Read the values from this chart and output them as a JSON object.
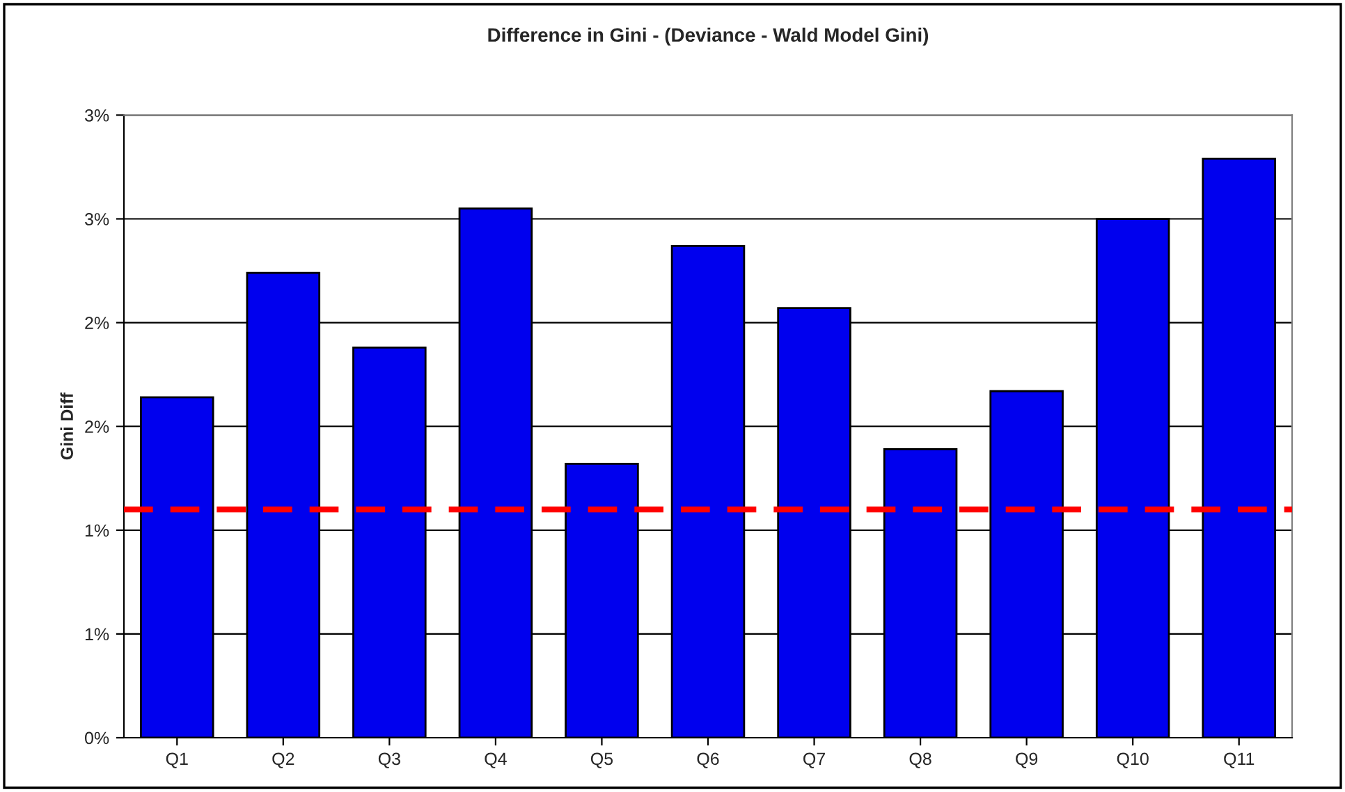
{
  "chart_data": {
    "type": "bar",
    "title": "Difference in Gini - (Deviance - Wald Model Gini)",
    "ylabel": "Gini Diff",
    "categories": [
      "Q1",
      "Q2",
      "Q3",
      "Q4",
      "Q5",
      "Q6",
      "Q7",
      "Q8",
      "Q9",
      "Q10",
      "Q11"
    ],
    "series": [
      {
        "color": "#0000ee",
        "values": [
          1.64,
          2.24,
          1.88,
          2.55,
          1.32,
          2.37,
          2.07,
          1.39,
          1.67,
          2.5,
          2.79
        ]
      }
    ],
    "ylim": [
      0,
      3
    ],
    "yticks": [
      {
        "value": 0,
        "label": "0%"
      },
      {
        "value": 0.5,
        "label": "1%"
      },
      {
        "value": 1,
        "label": "1%"
      },
      {
        "value": 1.5,
        "label": "2%"
      },
      {
        "value": 2,
        "label": "2%"
      },
      {
        "value": 2.5,
        "label": "3%"
      },
      {
        "value": 3,
        "label": "3%"
      }
    ],
    "ref_lines": [
      {
        "axis": "y",
        "value": 1.1,
        "color": "#ff0000",
        "line_style": "dashed"
      }
    ],
    "grid": "y",
    "legend": false
  }
}
